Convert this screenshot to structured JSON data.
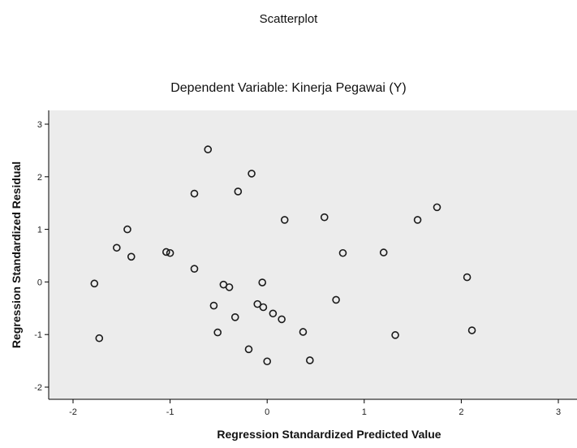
{
  "chart_data": {
    "type": "scatter",
    "title": "Scatterplot",
    "subtitle": "Dependent Variable: Kinerja Pegawai (Y)",
    "xlabel": "Regression Standardized Predicted Value",
    "ylabel": "Regression Standardized Residual",
    "xlim": [
      -2.0,
      3.0
    ],
    "ylim": [
      -2.2,
      3.1
    ],
    "x_ticks": [
      "-2",
      "-1",
      "0",
      "1",
      "2",
      "3"
    ],
    "x_tick_values": [
      -2,
      -1,
      0,
      1,
      2,
      3
    ],
    "y_ticks": [
      "3",
      "2",
      "1",
      "0",
      "-1",
      "-2"
    ],
    "y_tick_values": [
      3,
      2,
      1,
      0,
      -1,
      -2
    ],
    "grid": false,
    "legend": "none",
    "colors": {
      "plot_bg": "#ececec",
      "marker": "#1a1a1a",
      "axis": "#000000"
    },
    "points": [
      {
        "x": -1.78,
        "y": -0.03
      },
      {
        "x": -1.73,
        "y": -1.07
      },
      {
        "x": -1.55,
        "y": 0.65
      },
      {
        "x": -1.44,
        "y": 1.0
      },
      {
        "x": -1.4,
        "y": 0.48
      },
      {
        "x": -1.04,
        "y": 0.57
      },
      {
        "x": -1.0,
        "y": 0.55
      },
      {
        "x": -0.75,
        "y": 1.68
      },
      {
        "x": -0.75,
        "y": 0.25
      },
      {
        "x": -0.61,
        "y": 2.52
      },
      {
        "x": -0.55,
        "y": -0.45
      },
      {
        "x": -0.51,
        "y": -0.96
      },
      {
        "x": -0.45,
        "y": -0.05
      },
      {
        "x": -0.39,
        "y": -0.1
      },
      {
        "x": -0.33,
        "y": -0.67
      },
      {
        "x": -0.3,
        "y": 1.72
      },
      {
        "x": -0.19,
        "y": -1.28
      },
      {
        "x": -0.16,
        "y": 2.06
      },
      {
        "x": -0.1,
        "y": -0.42
      },
      {
        "x": -0.04,
        "y": -0.48
      },
      {
        "x": -0.05,
        "y": -0.01
      },
      {
        "x": 0.0,
        "y": -1.51
      },
      {
        "x": 0.06,
        "y": -0.6
      },
      {
        "x": 0.15,
        "y": -0.71
      },
      {
        "x": 0.18,
        "y": 1.18
      },
      {
        "x": 0.37,
        "y": -0.95
      },
      {
        "x": 0.44,
        "y": -1.49
      },
      {
        "x": 0.59,
        "y": 1.23
      },
      {
        "x": 0.71,
        "y": -0.34
      },
      {
        "x": 0.78,
        "y": 0.55
      },
      {
        "x": 1.2,
        "y": 0.56
      },
      {
        "x": 1.32,
        "y": -1.01
      },
      {
        "x": 1.55,
        "y": 1.18
      },
      {
        "x": 1.75,
        "y": 1.42
      },
      {
        "x": 2.06,
        "y": 0.09
      },
      {
        "x": 2.11,
        "y": -0.92
      }
    ]
  }
}
